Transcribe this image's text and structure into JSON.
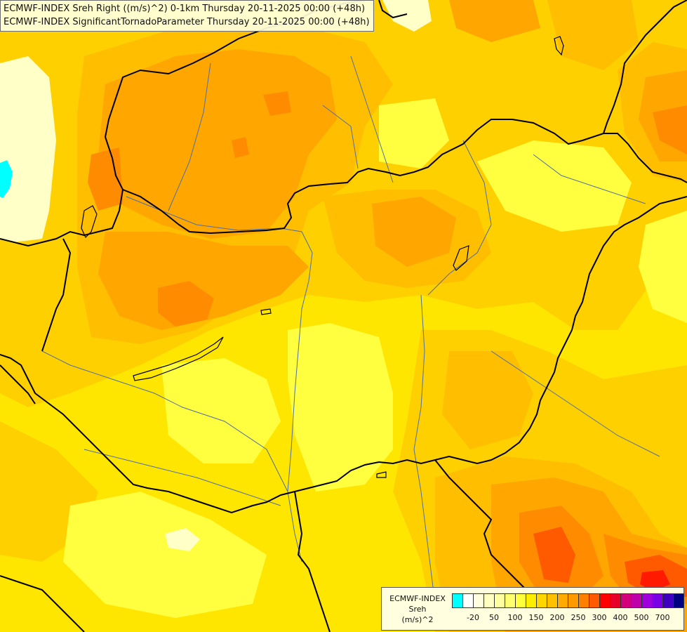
{
  "title_lines": [
    "ECMWF-INDEX Sreh Right ((m/s)^2) 0-1km Thursday 20-11-2025 00:00 (+48h)",
    "ECMWF-INDEX SignificantTornadoParameter Thursday 20-11-2025 00:00 (+48h)"
  ],
  "legend": {
    "name_lines": [
      "ECMWF-INDEX",
      "Sreh",
      "(m/s)^2"
    ],
    "swatch_colors": [
      "#00ffff",
      "#ffffff",
      "#ffffe0",
      "#ffffc0",
      "#ffffa0",
      "#ffff70",
      "#ffff3c",
      "#ffee00",
      "#ffd700",
      "#ffc000",
      "#ffaa00",
      "#ff9a00",
      "#ff7f00",
      "#ff5a00",
      "#ff0000",
      "#e60028",
      "#d2007a",
      "#c000aa",
      "#a000dc",
      "#7a00e6",
      "#4000c0",
      "#000080"
    ],
    "tick_labels": [
      "-20",
      "50",
      "100",
      "150",
      "200",
      "250",
      "300",
      "400",
      "500",
      "700"
    ]
  },
  "map_colors": {
    "base": "#ffe600",
    "light_yellow": "#ffff40",
    "gold": "#ffd000",
    "orange_light": "#ffbe00",
    "orange": "#ffa600",
    "orange_dark": "#ff8c00",
    "red_orange": "#ff5a00",
    "red": "#ff1a00",
    "cyan": "#00ffff",
    "pale": "#ffffc8",
    "border": "#000000",
    "river": "#4d6ea8"
  }
}
